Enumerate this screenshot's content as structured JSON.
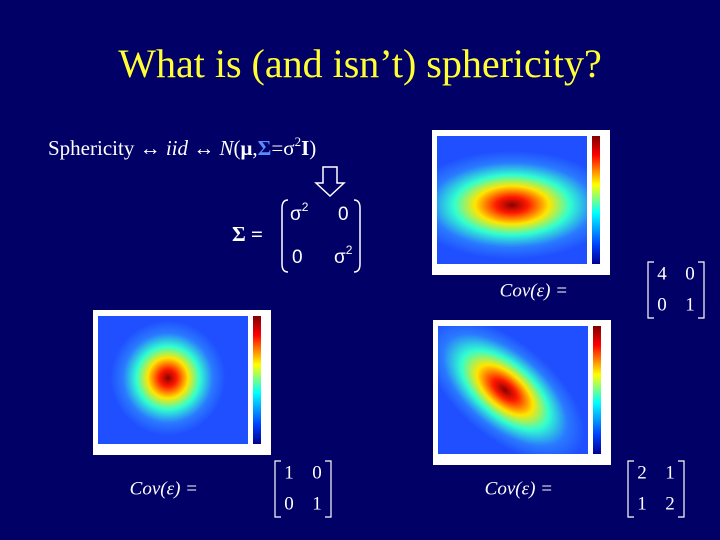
{
  "header": {
    "title": "What is (and isn’t) sphericity?"
  },
  "definition": {
    "parts": [
      "Sphericity ↔ ",
      "iid",
      " ↔ ",
      "N",
      "(",
      "μ",
      ",",
      "Σ",
      "=σ",
      "2",
      "I",
      ")"
    ]
  },
  "sigma_matrix": {
    "label": "Σ =",
    "entries": [
      [
        {
          "base": "σ",
          "sup": "2"
        },
        "0"
      ],
      [
        "0",
        {
          "base": "σ",
          "sup": "2"
        }
      ]
    ]
  },
  "panels": [
    {
      "cov_label": "Cov(ε) =",
      "matrix": [
        [
          "4",
          "0"
        ],
        [
          "0",
          "1"
        ]
      ]
    },
    {
      "cov_label": "Cov(ε) =",
      "matrix": [
        [
          "1",
          "0"
        ],
        [
          "0",
          "1"
        ]
      ]
    },
    {
      "cov_label": "Cov(ε) =",
      "matrix": [
        [
          "2",
          "1"
        ],
        [
          "1",
          "2"
        ]
      ]
    }
  ]
}
